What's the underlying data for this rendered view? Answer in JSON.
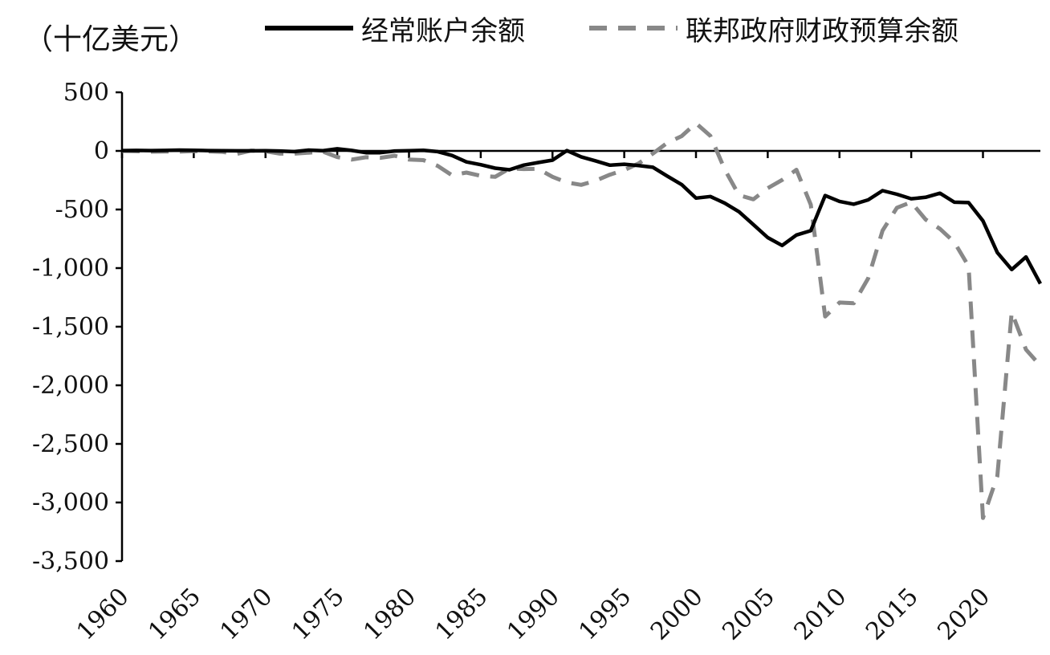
{
  "chart_data": {
    "type": "line",
    "title": "",
    "ylabel": "（十亿美元）",
    "xlabel": "",
    "ylim": [
      -3500,
      500
    ],
    "xlim": [
      1960,
      2024
    ],
    "yticks": [
      500,
      0,
      -500,
      -1000,
      -1500,
      -2000,
      -2500,
      -3000,
      -3500
    ],
    "ytick_labels": [
      "500",
      "0",
      "-500",
      "-1,000",
      "-1,500",
      "-2,000",
      "-2,500",
      "-3,000",
      "-3,500"
    ],
    "xticks": [
      1960,
      1965,
      1970,
      1975,
      1980,
      1985,
      1990,
      1995,
      2000,
      2005,
      2010,
      2015,
      2020
    ],
    "xtick_labels": [
      "1960",
      "1965",
      "1970",
      "1975",
      "1980",
      "1985",
      "1990",
      "1995",
      "2000",
      "2005",
      "2010",
      "2015",
      "2020"
    ],
    "grid": false,
    "legend_position": "top",
    "series": [
      {
        "name": "经常账户余额",
        "style": "solid",
        "color": "#000000",
        "x": [
          1960,
          1961,
          1962,
          1963,
          1964,
          1965,
          1966,
          1967,
          1968,
          1969,
          1970,
          1971,
          1972,
          1973,
          1974,
          1975,
          1976,
          1977,
          1978,
          1979,
          1980,
          1981,
          1982,
          1983,
          1984,
          1985,
          1986,
          1987,
          1988,
          1989,
          1990,
          1991,
          1992,
          1993,
          1994,
          1995,
          1996,
          1997,
          1998,
          1999,
          2000,
          2001,
          2002,
          2003,
          2004,
          2005,
          2006,
          2007,
          2008,
          2009,
          2010,
          2011,
          2012,
          2013,
          2014,
          2015,
          2016,
          2017,
          2018,
          2019,
          2020,
          2021,
          2022,
          2023,
          2024
        ],
        "values": [
          3,
          4,
          3,
          4,
          7,
          5,
          3,
          2,
          1,
          1,
          2,
          -1,
          -6,
          7,
          2,
          18,
          4,
          -15,
          -15,
          -1,
          2,
          5,
          -6,
          -39,
          -94,
          -118,
          -147,
          -161,
          -121,
          -99,
          -79,
          3,
          -51,
          -85,
          -122,
          -114,
          -125,
          -140,
          -215,
          -287,
          -403,
          -389,
          -446,
          -519,
          -629,
          -740,
          -807,
          -718,
          -681,
          -381,
          -431,
          -455,
          -418,
          -339,
          -370,
          -408,
          -396,
          -361,
          -438,
          -441,
          -597,
          -868,
          -1012,
          -905,
          -1133
        ]
      },
      {
        "name": "联邦政府财政预算余额",
        "style": "dashed",
        "color": "#888888",
        "x": [
          1960,
          1961,
          1962,
          1963,
          1964,
          1965,
          1966,
          1967,
          1968,
          1969,
          1970,
          1971,
          1972,
          1973,
          1974,
          1975,
          1976,
          1977,
          1978,
          1979,
          1980,
          1981,
          1982,
          1983,
          1984,
          1985,
          1986,
          1987,
          1988,
          1989,
          1990,
          1991,
          1992,
          1993,
          1994,
          1995,
          1996,
          1997,
          1998,
          1999,
          2000,
          2001,
          2002,
          2003,
          2004,
          2005,
          2006,
          2007,
          2008,
          2009,
          2010,
          2011,
          2012,
          2013,
          2014,
          2015,
          2016,
          2017,
          2018,
          2019,
          2020,
          2021,
          2022,
          2023,
          2024
        ],
        "values": [
          0,
          -3,
          -7,
          -5,
          -6,
          -1,
          -4,
          -9,
          -25,
          3,
          -3,
          -23,
          -23,
          -15,
          -6,
          -53,
          -74,
          -54,
          -59,
          -41,
          -74,
          -79,
          -128,
          -208,
          -185,
          -212,
          -221,
          -150,
          -155,
          -153,
          -221,
          -269,
          -290,
          -255,
          -203,
          -164,
          -107,
          -22,
          69,
          126,
          236,
          128,
          -158,
          -378,
          -413,
          -318,
          -248,
          -161,
          -459,
          -1413,
          -1294,
          -1300,
          -1087,
          -680,
          -485,
          -438,
          -585,
          -665,
          -779,
          -984,
          -3132,
          -2775,
          -1376,
          -1695,
          -1833
        ]
      }
    ]
  }
}
